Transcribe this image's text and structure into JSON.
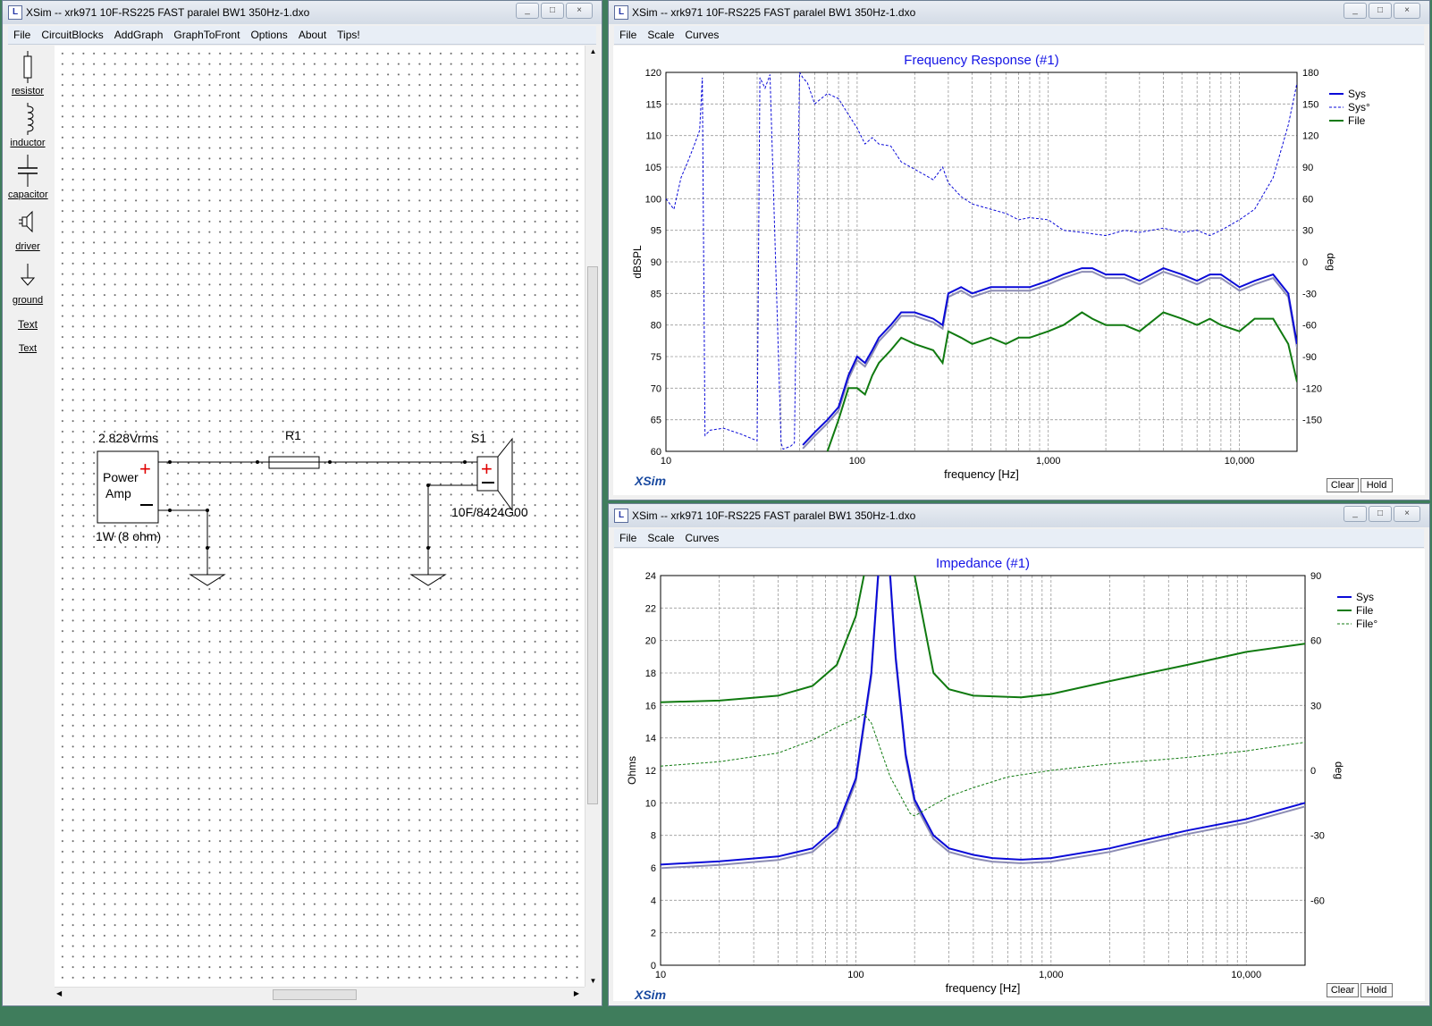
{
  "schematic_window": {
    "title": "XSim -- xrk971 10F-RS225 FAST paralel BW1 350Hz-1.dxo",
    "menu": [
      "File",
      "CircuitBlocks",
      "AddGraph",
      "GraphToFront",
      "Options",
      "About",
      "Tips!"
    ],
    "tools": [
      {
        "label": "resistor",
        "icon": "resistor-icon"
      },
      {
        "label": "inductor",
        "icon": "inductor-icon"
      },
      {
        "label": "capacitor",
        "icon": "capacitor-icon"
      },
      {
        "label": "driver",
        "icon": "driver-icon"
      },
      {
        "label": "ground",
        "icon": "ground-icon"
      },
      {
        "label": "Text",
        "icon": "text-icon",
        "icon_text": "Text"
      }
    ],
    "circuit": {
      "source_voltage": "2.828Vrms",
      "source_name": "Power",
      "source_name2": "Amp",
      "source_power": "1W (8 ohm)",
      "plus": "+",
      "minus": "–",
      "resistor_label": "R1",
      "driver_label": "S1",
      "driver_model": "10F/8424G00"
    }
  },
  "fr_window": {
    "title": "XSim -- xrk971 10F-RS225 FAST paralel BW1 350Hz-1.dxo",
    "menu": [
      "File",
      "Scale",
      "Curves"
    ],
    "graph_title": "Frequency Response (#1)",
    "xlabel": "frequency [Hz]",
    "ylabel": "dBSPL",
    "y2label": "deg",
    "brand": "XSim",
    "buttons": {
      "clear": "Clear",
      "hold": "Hold"
    }
  },
  "imp_window": {
    "title": "XSim -- xrk971 10F-RS225 FAST paralel BW1 350Hz-1.dxo",
    "menu": [
      "File",
      "Scale",
      "Curves"
    ],
    "graph_title": "Impedance (#1)",
    "xlabel": "frequency [Hz]",
    "ylabel": "Ohms",
    "y2label": "deg",
    "brand": "XSim",
    "buttons": {
      "clear": "Clear",
      "hold": "Hold"
    }
  },
  "colors": {
    "sys": "#0a0ad8",
    "sys_shadow": "#8c8cb4",
    "file": "#107a10",
    "title_blue": "#1414e6",
    "brand": "#1a4aa0",
    "grid": "#9a9a9a"
  },
  "chart_data": [
    {
      "type": "line",
      "title": "Frequency Response (#1)",
      "xlabel": "frequency [Hz]",
      "ylabel": "dBSPL",
      "y2label": "deg",
      "xscale": "log",
      "xlim": [
        10,
        20000
      ],
      "ylim": [
        60,
        120
      ],
      "y2lim": [
        -180,
        180
      ],
      "xticks": [
        {
          "v": 10,
          "label": "10"
        },
        {
          "v": 100,
          "label": "100"
        },
        {
          "v": 1000,
          "label": "1,000"
        },
        {
          "v": 10000,
          "label": "10,000"
        }
      ],
      "yticks": [
        60,
        65,
        70,
        75,
        80,
        85,
        90,
        95,
        100,
        105,
        110,
        115,
        120
      ],
      "y2ticks": [
        -150,
        -120,
        -90,
        -60,
        -30,
        0,
        30,
        60,
        90,
        120,
        150,
        180
      ],
      "legend_position": "top-right",
      "series": [
        {
          "name": "Sys",
          "style": "solid",
          "color": "#0a0ad8",
          "axis": "left",
          "x": [
            52,
            60,
            70,
            80,
            90,
            100,
            110,
            120,
            130,
            150,
            170,
            200,
            250,
            280,
            300,
            350,
            400,
            500,
            600,
            700,
            800,
            1000,
            1200,
            1500,
            1700,
            2000,
            2500,
            3000,
            4000,
            5000,
            6000,
            7000,
            8000,
            10000,
            12000,
            15000,
            18000,
            20000
          ],
          "y": [
            61,
            63,
            65,
            67,
            72,
            75,
            74,
            76,
            78,
            80,
            82,
            82,
            81,
            80,
            85,
            86,
            85,
            86,
            86,
            86,
            86,
            87,
            88,
            89,
            89,
            88,
            88,
            87,
            89,
            88,
            87,
            88,
            88,
            86,
            87,
            88,
            85,
            77
          ]
        },
        {
          "name": "Sys°",
          "style": "dashed",
          "color": "#0a0ad8",
          "axis": "right",
          "x": [
            10,
            11,
            12,
            13,
            14,
            15,
            15.5,
            16,
            17,
            20,
            25,
            30,
            31,
            33,
            35,
            40,
            41,
            45,
            47,
            50,
            52,
            55,
            60,
            70,
            80,
            90,
            100,
            110,
            120,
            130,
            150,
            170,
            200,
            250,
            280,
            300,
            350,
            400,
            500,
            600,
            700,
            800,
            1000,
            1200,
            1500,
            2000,
            2500,
            3000,
            4000,
            5000,
            6000,
            7000,
            8000,
            10000,
            12000,
            15000,
            18000,
            20000
          ],
          "y": [
            60,
            50,
            80,
            95,
            110,
            125,
            175,
            -165,
            -160,
            -158,
            -164,
            -170,
            175,
            165,
            178,
            -172,
            -178,
            -175,
            -172,
            180,
            175,
            170,
            150,
            160,
            155,
            140,
            127,
            112,
            118,
            112,
            110,
            95,
            88,
            78,
            90,
            75,
            62,
            55,
            50,
            46,
            40,
            42,
            40,
            30,
            28,
            25,
            30,
            28,
            32,
            28,
            30,
            25,
            30,
            40,
            50,
            80,
            130,
            170
          ]
        },
        {
          "name": "File",
          "style": "solid",
          "color": "#107a10",
          "axis": "left",
          "x": [
            70,
            80,
            90,
            100,
            110,
            120,
            130,
            150,
            170,
            200,
            250,
            280,
            300,
            350,
            400,
            500,
            600,
            700,
            800,
            1000,
            1200,
            1500,
            1700,
            2000,
            2500,
            3000,
            4000,
            5000,
            6000,
            7000,
            8000,
            10000,
            12000,
            15000,
            18000,
            20000
          ],
          "y": [
            60,
            65,
            70,
            70,
            69,
            72,
            74,
            76,
            78,
            77,
            76,
            74,
            79,
            78,
            77,
            78,
            77,
            78,
            78,
            79,
            80,
            82,
            81,
            80,
            80,
            79,
            82,
            81,
            80,
            81,
            80,
            79,
            81,
            81,
            77,
            71
          ]
        }
      ]
    },
    {
      "type": "line",
      "title": "Impedance (#1)",
      "xlabel": "frequency [Hz]",
      "ylabel": "Ohms",
      "y2label": "deg",
      "xscale": "log",
      "xlim": [
        10,
        20000
      ],
      "ylim": [
        0,
        24
      ],
      "y2lim": [
        -90,
        90
      ],
      "xticks": [
        {
          "v": 10,
          "label": "10"
        },
        {
          "v": 100,
          "label": "100"
        },
        {
          "v": 1000,
          "label": "1,000"
        },
        {
          "v": 10000,
          "label": "10,000"
        }
      ],
      "yticks": [
        0,
        2,
        4,
        6,
        8,
        10,
        12,
        14,
        16,
        18,
        20,
        22,
        24
      ],
      "y2ticks": [
        -60,
        -30,
        0,
        30,
        60,
        90
      ],
      "legend_position": "top-right",
      "series": [
        {
          "name": "Sys",
          "style": "solid",
          "color": "#0a0ad8",
          "axis": "left",
          "x": [
            10,
            20,
            40,
            60,
            80,
            100,
            120,
            130,
            140,
            150,
            160,
            180,
            200,
            250,
            300,
            400,
            500,
            700,
            1000,
            2000,
            3000,
            5000,
            10000,
            20000
          ],
          "y": [
            6.2,
            6.4,
            6.7,
            7.2,
            8.5,
            11.5,
            18,
            24,
            26,
            24,
            19,
            13,
            10.2,
            8,
            7.2,
            6.8,
            6.6,
            6.5,
            6.6,
            7.2,
            7.7,
            8.3,
            9.0,
            10.0
          ]
        },
        {
          "name": "File",
          "style": "solid",
          "color": "#107a10",
          "axis": "left",
          "x": [
            10,
            20,
            40,
            60,
            80,
            100,
            110,
            113,
            190,
            200,
            250,
            300,
            400,
            700,
            1000,
            2000,
            5000,
            10000,
            20000
          ],
          "y": [
            16.2,
            16.3,
            16.6,
            17.2,
            18.5,
            21.5,
            24,
            26,
            26,
            24,
            18,
            17,
            16.6,
            16.5,
            16.7,
            17.5,
            18.5,
            19.3,
            19.8
          ]
        },
        {
          "name": "File°",
          "style": "dashed",
          "color": "#107a10",
          "axis": "right",
          "x": [
            10,
            20,
            40,
            60,
            80,
            100,
            110,
            120,
            150,
            190,
            200,
            250,
            300,
            400,
            600,
            1000,
            2000,
            5000,
            10000,
            20000
          ],
          "y": [
            2,
            4,
            8,
            14,
            20,
            24,
            26,
            22,
            -3,
            -20,
            -21,
            -16,
            -12,
            -8,
            -3,
            0,
            3,
            6,
            9,
            13
          ]
        }
      ]
    }
  ]
}
